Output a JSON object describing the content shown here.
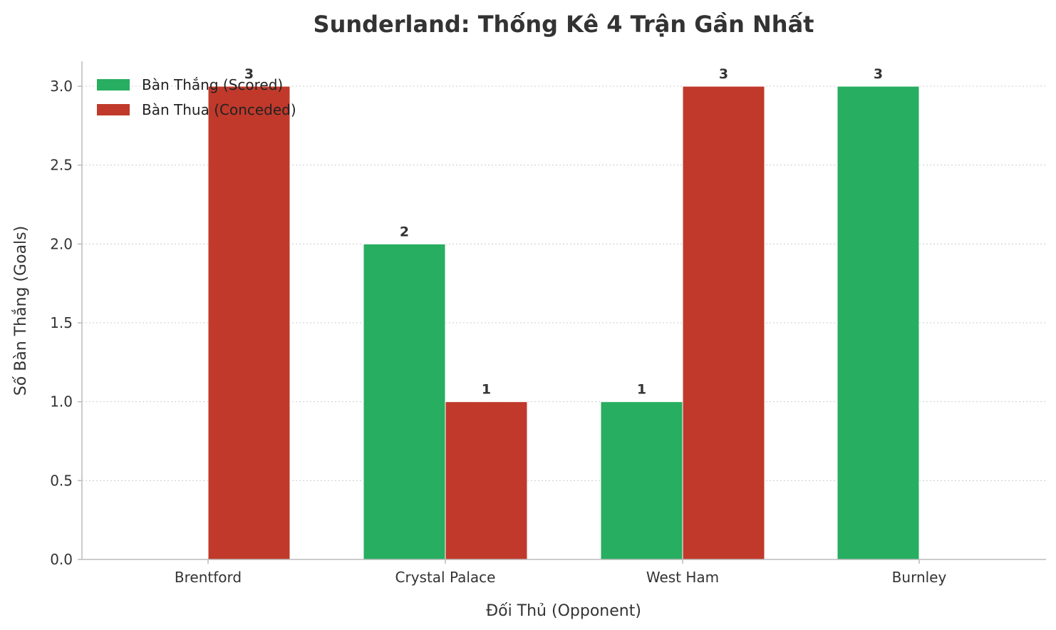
{
  "chart_data": {
    "type": "bar",
    "title": "Sunderland: Thống Kê 4 Trận Gần Nhất",
    "xlabel": "Đối Thủ (Opponent)",
    "ylabel": "Số Bàn Thắng (Goals)",
    "categories": [
      "Brentford",
      "Crystal Palace",
      "West Ham",
      "Burnley"
    ],
    "series": [
      {
        "name": "Bàn Thắng (Scored)",
        "values": [
          0,
          2,
          1,
          3
        ],
        "color": "#27ae60"
      },
      {
        "name": "Bàn Thua (Conceded)",
        "values": [
          3,
          1,
          3,
          0
        ],
        "color": "#c0392b"
      }
    ],
    "ylim": [
      0,
      3.15
    ],
    "yticks": [
      "0.0",
      "0.5",
      "1.0",
      "1.5",
      "2.0",
      "2.5",
      "3.0"
    ],
    "grid": true,
    "legend": "top-left"
  }
}
